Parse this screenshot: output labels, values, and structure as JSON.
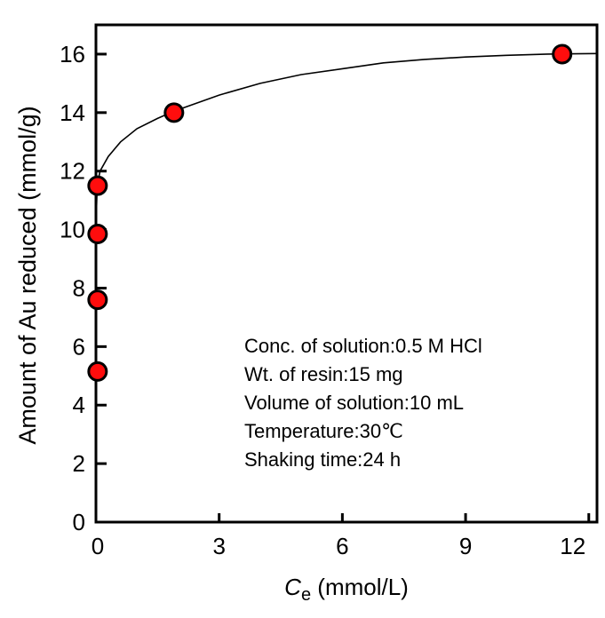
{
  "chart_data": {
    "type": "scatter",
    "xlabel_italic": "C",
    "xlabel_sub": "e",
    "xlabel_unit": " (mmol/L)",
    "ylabel": "Amount of Au reduced (mmol/g)",
    "xlim": [
      0,
      12.2
    ],
    "ylim": [
      0,
      17
    ],
    "xticks": [
      0,
      3,
      6,
      9,
      12
    ],
    "yticks": [
      0,
      2,
      4,
      6,
      8,
      10,
      12,
      14,
      16
    ],
    "grid": false,
    "points": [
      {
        "x": 0.04,
        "y": 5.15
      },
      {
        "x": 0.04,
        "y": 7.6
      },
      {
        "x": 0.04,
        "y": 9.85
      },
      {
        "x": 0.04,
        "y": 11.5
      },
      {
        "x": 1.9,
        "y": 14.0
      },
      {
        "x": 11.35,
        "y": 16.0
      }
    ],
    "fit_curve": [
      [
        0.0,
        9.0
      ],
      [
        0.01,
        10.6
      ],
      [
        0.03,
        11.5
      ],
      [
        0.1,
        12.0
      ],
      [
        0.3,
        12.5
      ],
      [
        0.6,
        13.0
      ],
      [
        1.0,
        13.45
      ],
      [
        1.5,
        13.8
      ],
      [
        1.9,
        14.05
      ],
      [
        3,
        14.6
      ],
      [
        4,
        15.0
      ],
      [
        5,
        15.3
      ],
      [
        6,
        15.5
      ],
      [
        7,
        15.7
      ],
      [
        8,
        15.82
      ],
      [
        9,
        15.9
      ],
      [
        10,
        15.96
      ],
      [
        11,
        16.0
      ],
      [
        12.2,
        16.02
      ]
    ],
    "marker_color": "#ff0d0d",
    "annotations": [
      "Conc. of solution:0.5 M HCl",
      "Wt. of resin:15 mg",
      "Volume of solution:10 mL",
      "Temperature:30℃",
      "Shaking time:24 h"
    ]
  }
}
